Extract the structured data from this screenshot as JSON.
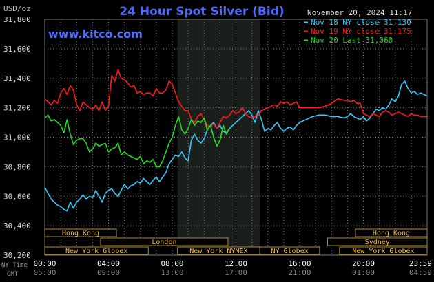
{
  "chart_data": {
    "type": "line",
    "title": "24 Hour Spot Silver (Bid)",
    "watermark": "www.kitco.com",
    "unit_label": "USD/oz",
    "timestamp": "November 20, 2024 11:17",
    "ylim": [
      30200,
      31800
    ],
    "y_ticks": [
      "31,800",
      "31,600",
      "31,400",
      "31,200",
      "31,000",
      "30,800",
      "30,600",
      "30,400",
      "30,200"
    ],
    "x_labels": [
      "00:00",
      "04:00",
      "08:00",
      "12:00",
      "16:00",
      "20:00",
      "23:59"
    ],
    "x_label_hours": [
      0,
      4,
      8,
      12,
      16,
      20,
      23.98
    ],
    "gmt_labels": [
      "05:00",
      "09:00",
      "13:00",
      "17:00",
      "21:00",
      "01:00",
      "04:59"
    ],
    "row_label_ny": "NY Time",
    "row_label_gmt": "GMT",
    "nymex_shade_hours": [
      8.33,
      13.5
    ],
    "legend": [
      {
        "text": "Nov 18 NY close 31,130",
        "color": "#33ccff"
      },
      {
        "text": "Nov 19 NY close 31,175",
        "color": "#ff1a1a"
      },
      {
        "text": "Nov 20 Last 31,060",
        "color": "#22dd22"
      }
    ],
    "sessions": [
      {
        "label": "Hong Kong",
        "start": 0,
        "end": 4.5,
        "row": 0
      },
      {
        "label": "Hong Kong",
        "start": 19.5,
        "end": 24,
        "row": 0
      },
      {
        "label": "London",
        "start": 3.5,
        "end": 11.5,
        "row": 1
      },
      {
        "label": "Sydney",
        "start": 17.75,
        "end": 24,
        "row": 1
      },
      {
        "label": "New York Globex",
        "start": 0,
        "end": 6.5,
        "row": 2
      },
      {
        "label": "New York NYMEX",
        "start": 8.33,
        "end": 13.5,
        "row": 2
      },
      {
        "label": "NY Globex",
        "start": 13.5,
        "end": 17.25,
        "row": 2
      },
      {
        "label": "New York Globex",
        "start": 18.5,
        "end": 24,
        "row": 2
      }
    ],
    "series": [
      {
        "color": "#33ccff",
        "x": [
          0,
          0.2,
          0.4,
          0.6,
          0.8,
          1,
          1.2,
          1.4,
          1.6,
          1.8,
          2,
          2.2,
          2.4,
          2.6,
          2.8,
          3,
          3.2,
          3.4,
          3.6,
          3.8,
          4,
          4.2,
          4.4,
          4.6,
          4.8,
          5,
          5.2,
          5.4,
          5.6,
          5.8,
          6,
          6.2,
          6.4,
          6.6,
          6.8,
          7,
          7.2,
          7.4,
          7.6,
          7.8,
          8,
          8.2,
          8.4,
          8.6,
          8.8,
          9,
          9.2,
          9.4,
          9.6,
          9.8,
          10,
          10.2,
          10.4,
          10.6,
          10.8,
          11,
          11.2,
          11.4,
          11.6,
          11.8,
          12,
          12.2,
          12.4,
          12.6,
          12.8,
          13,
          13.2,
          13.4,
          13.6,
          13.8,
          14,
          14.2,
          14.4,
          14.6,
          14.8,
          15,
          15.2,
          15.4,
          15.6,
          15.8,
          16,
          16.4,
          16.8,
          17.2,
          17.6,
          18,
          18.4,
          18.8,
          19,
          19.2,
          19.4,
          19.6,
          19.8,
          20,
          20.2,
          20.4,
          20.6,
          20.8,
          21,
          21.2,
          21.4,
          21.6,
          21.8,
          22,
          22.2,
          22.4,
          22.6,
          22.8,
          23,
          23.2,
          23.4,
          23.6,
          23.8,
          23.98
        ],
        "y": [
          30660,
          30620,
          30580,
          30560,
          30540,
          30530,
          30510,
          30500,
          30560,
          30520,
          30560,
          30580,
          30610,
          30580,
          30600,
          30590,
          30640,
          30600,
          30560,
          30620,
          30640,
          30650,
          30620,
          30600,
          30640,
          30680,
          30650,
          30670,
          30680,
          30700,
          30690,
          30720,
          30700,
          30680,
          30710,
          30730,
          30700,
          30730,
          30760,
          30820,
          30850,
          30880,
          30870,
          30900,
          30860,
          30840,
          30980,
          31020,
          30980,
          30960,
          30990,
          31050,
          31080,
          31100,
          31060,
          31080,
          31040,
          31030,
          31060,
          31080,
          31100,
          31120,
          31140,
          31160,
          31180,
          31150,
          31100,
          31180,
          31120,
          31040,
          31060,
          31050,
          31080,
          31100,
          31060,
          31040,
          31060,
          31070,
          31050,
          31080,
          31100,
          31120,
          31140,
          31150,
          31150,
          31140,
          31140,
          31130,
          31140,
          31160,
          31140,
          31130,
          31120,
          31140,
          31110,
          31130,
          31160,
          31190,
          31180,
          31200,
          31190,
          31220,
          31260,
          31240,
          31280,
          31360,
          31380,
          31330,
          31300,
          31310,
          31290,
          31300,
          31290,
          31280
        ]
      },
      {
        "color": "#ff1a1a",
        "x": [
          0,
          0.2,
          0.4,
          0.6,
          0.8,
          1,
          1.2,
          1.4,
          1.6,
          1.8,
          2,
          2.2,
          2.4,
          2.6,
          2.8,
          3,
          3.2,
          3.4,
          3.6,
          3.8,
          4,
          4.2,
          4.4,
          4.6,
          4.8,
          5,
          5.2,
          5.4,
          5.6,
          5.8,
          6,
          6.2,
          6.4,
          6.6,
          6.8,
          7,
          7.2,
          7.4,
          7.6,
          7.8,
          8,
          8.2,
          8.4,
          8.6,
          8.8,
          9,
          9.2,
          9.4,
          9.6,
          9.8,
          10,
          10.2,
          10.4,
          10.6,
          10.8,
          11,
          11.2,
          11.4,
          11.6,
          11.8,
          12,
          12.2,
          12.4,
          12.6,
          12.8,
          13,
          13.2,
          13.4,
          13.6,
          13.8,
          14,
          14.2,
          14.4,
          14.6,
          14.8,
          15,
          15.2,
          15.4,
          15.6,
          15.8,
          16,
          16.4,
          16.8,
          17.2,
          17.6,
          18,
          18.4,
          18.8,
          19,
          19.2,
          19.4,
          19.6,
          19.8,
          20,
          20.2,
          20.4,
          20.6,
          20.8,
          21,
          21.2,
          21.4,
          21.6,
          21.8,
          22,
          22.2,
          22.4,
          22.6,
          22.8,
          23,
          23.2,
          23.4,
          23.6,
          23.8,
          23.98
        ],
        "y": [
          31260,
          31240,
          31220,
          31250,
          31230,
          31300,
          31330,
          31290,
          31350,
          31320,
          31220,
          31180,
          31240,
          31220,
          31200,
          31190,
          31220,
          31180,
          31240,
          31180,
          31210,
          31420,
          31380,
          31460,
          31400,
          31390,
          31370,
          31340,
          31350,
          31300,
          31310,
          31290,
          31300,
          31300,
          31280,
          31330,
          31300,
          31300,
          31320,
          31380,
          31360,
          31300,
          31240,
          31210,
          31180,
          31180,
          31120,
          31100,
          31140,
          31160,
          31120,
          31080,
          31070,
          31090,
          31060,
          31100,
          31140,
          31130,
          31150,
          31180,
          31160,
          31170,
          31200,
          31160,
          31140,
          31130,
          31140,
          31150,
          31180,
          31190,
          31200,
          31210,
          31220,
          31210,
          31240,
          31230,
          31240,
          31220,
          31230,
          31240,
          31200,
          31200,
          31200,
          31200,
          31210,
          31230,
          31260,
          31250,
          31250,
          31240,
          31250,
          31230,
          31230,
          31160,
          31150,
          31140,
          31160,
          31150,
          31140,
          31170,
          31180,
          31170,
          31150,
          31160,
          31170,
          31160,
          31150,
          31140,
          31160,
          31150,
          31150,
          31140,
          31140,
          31140
        ]
      },
      {
        "color": "#22dd22",
        "x": [
          0,
          0.2,
          0.4,
          0.6,
          0.8,
          1,
          1.2,
          1.4,
          1.6,
          1.8,
          2,
          2.2,
          2.4,
          2.6,
          2.8,
          3,
          3.2,
          3.4,
          3.6,
          3.8,
          4,
          4.2,
          4.4,
          4.6,
          4.8,
          5,
          5.2,
          5.4,
          5.6,
          5.8,
          6,
          6.2,
          6.4,
          6.6,
          6.8,
          7,
          7.2,
          7.4,
          7.6,
          7.8,
          8,
          8.2,
          8.4,
          8.6,
          8.8,
          9,
          9.2,
          9.4,
          9.6,
          9.8,
          10,
          10.2,
          10.4,
          10.6,
          10.8,
          11,
          11.2,
          11.4,
          11.6
        ],
        "y": [
          31130,
          31150,
          31110,
          31120,
          31100,
          31080,
          31030,
          31120,
          31020,
          30950,
          30980,
          30990,
          30990,
          30960,
          30900,
          30920,
          30960,
          30940,
          30950,
          30960,
          30900,
          30920,
          30930,
          30960,
          30880,
          30900,
          30880,
          30870,
          30860,
          30850,
          30870,
          30820,
          30840,
          30830,
          30850,
          30800,
          30800,
          30840,
          30900,
          30960,
          31000,
          31080,
          31140,
          31050,
          31020,
          31060,
          31120,
          31080,
          31110,
          31100,
          31130,
          31050,
          31080,
          31000,
          30940,
          30980,
          31080,
          31020,
          31060
        ]
      }
    ]
  }
}
